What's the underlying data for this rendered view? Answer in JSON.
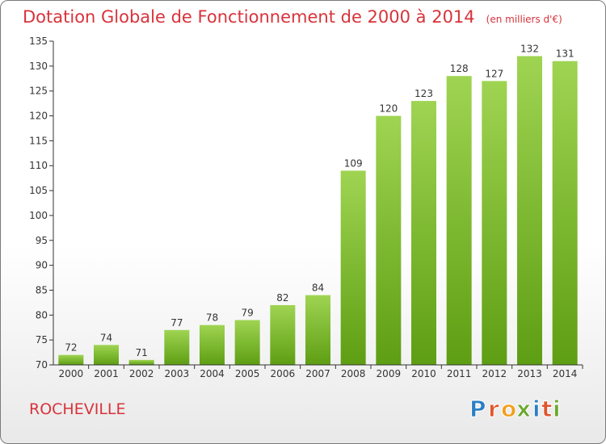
{
  "title": "Dotation Globale de Fonctionnement de 2000 à 2014",
  "subtitle": "(en milliers d'€)",
  "place": "ROCHEVILLE",
  "logo": {
    "text": "Proxiti",
    "letters": [
      "P",
      "r",
      "o",
      "x",
      "i",
      "t",
      "i"
    ],
    "colors": [
      "#2a7fc4",
      "#e0552b",
      "#f2a01e",
      "#6aa82d",
      "#2a7fc4",
      "#e0552b",
      "#6aa82d"
    ]
  },
  "colors": {
    "title": "#d8333b",
    "bar_light": "#9fd452",
    "bar_dark": "#5e9e13",
    "axis": "#333333"
  },
  "chart_data": {
    "type": "bar",
    "categories": [
      "2000",
      "2001",
      "2002",
      "2003",
      "2004",
      "2005",
      "2006",
      "2007",
      "2008",
      "2009",
      "2010",
      "2011",
      "2012",
      "2013",
      "2014"
    ],
    "values": [
      72,
      74,
      71,
      77,
      78,
      79,
      82,
      84,
      109,
      120,
      123,
      128,
      127,
      132,
      131
    ],
    "ylim": [
      70,
      135
    ],
    "yticks": [
      70,
      75,
      80,
      85,
      90,
      95,
      100,
      105,
      110,
      115,
      120,
      125,
      130,
      135
    ],
    "grid": false,
    "data_labels": true
  }
}
